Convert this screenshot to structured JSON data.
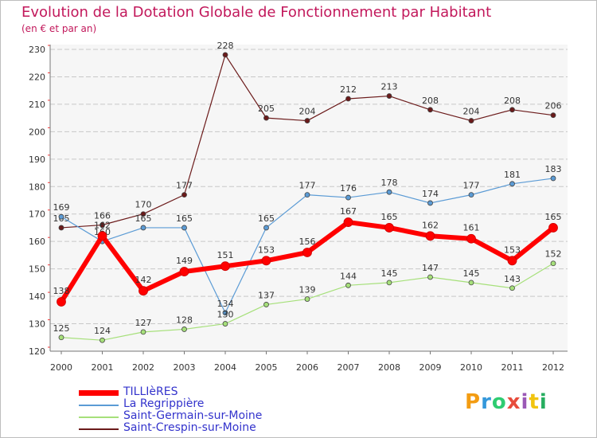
{
  "title": "Evolution de la Dotation Globale de Fonctionnement par Habitant",
  "subtitle": "(en € et par an)",
  "logo": {
    "text": "Proxiti",
    "letters": [
      "P",
      "r",
      "o",
      "x",
      "i",
      "t",
      "i"
    ],
    "colors": [
      "#f39c12",
      "#3498db",
      "#2ecc71",
      "#e74c3c",
      "#9b59b6",
      "#f1c40f",
      "#27ae60"
    ]
  },
  "chart_data": {
    "type": "line",
    "title": "Evolution de la Dotation Globale de Fonctionnement par Habitant",
    "subtitle": "(en € et par an)",
    "xlabel": "",
    "ylabel": "",
    "x": [
      "2000",
      "2001",
      "2002",
      "2003",
      "2004",
      "2005",
      "2006",
      "2007",
      "2008",
      "2009",
      "2010",
      "2011",
      "2012"
    ],
    "ylim": [
      120,
      230
    ],
    "yticks": [
      120,
      130,
      140,
      150,
      160,
      170,
      180,
      190,
      200,
      210,
      220,
      230
    ],
    "grid": "horizontal",
    "series": [
      {
        "name": "Saint-Crespin-sur-Moine",
        "color": "#6b1a1a",
        "width": 1.2,
        "labels": "above",
        "values": [
          165,
          166,
          170,
          177,
          228,
          205,
          204,
          212,
          213,
          208,
          204,
          208,
          206
        ]
      },
      {
        "name": "La Regrippière",
        "color": "#5b9bd5",
        "width": 1.2,
        "labels": "above",
        "values": [
          169,
          160,
          165,
          165,
          134,
          165,
          177,
          176,
          178,
          174,
          177,
          181,
          183
        ]
      },
      {
        "name": "Saint-Germain-sur-Moine",
        "color": "#a6e07a",
        "width": 1.2,
        "labels": "above",
        "values": [
          125,
          124,
          127,
          128,
          130,
          137,
          139,
          144,
          145,
          147,
          145,
          143,
          152
        ]
      },
      {
        "name": "TILLIèRES",
        "color": "#ff0000",
        "width": 6,
        "labels": "above",
        "values": [
          138,
          162,
          142,
          149,
          151,
          153,
          156,
          167,
          165,
          162,
          161,
          153,
          165
        ]
      }
    ],
    "legend": [
      {
        "name": "TILLIèRES",
        "color": "#ff0000"
      },
      {
        "name": "La Regrippière",
        "color": "#5b9bd5"
      },
      {
        "name": "Saint-Germain-sur-Moine",
        "color": "#a6e07a"
      },
      {
        "name": "Saint-Crespin-sur-Moine",
        "color": "#6b1a1a"
      }
    ],
    "legend_position": "bottom-left"
  }
}
